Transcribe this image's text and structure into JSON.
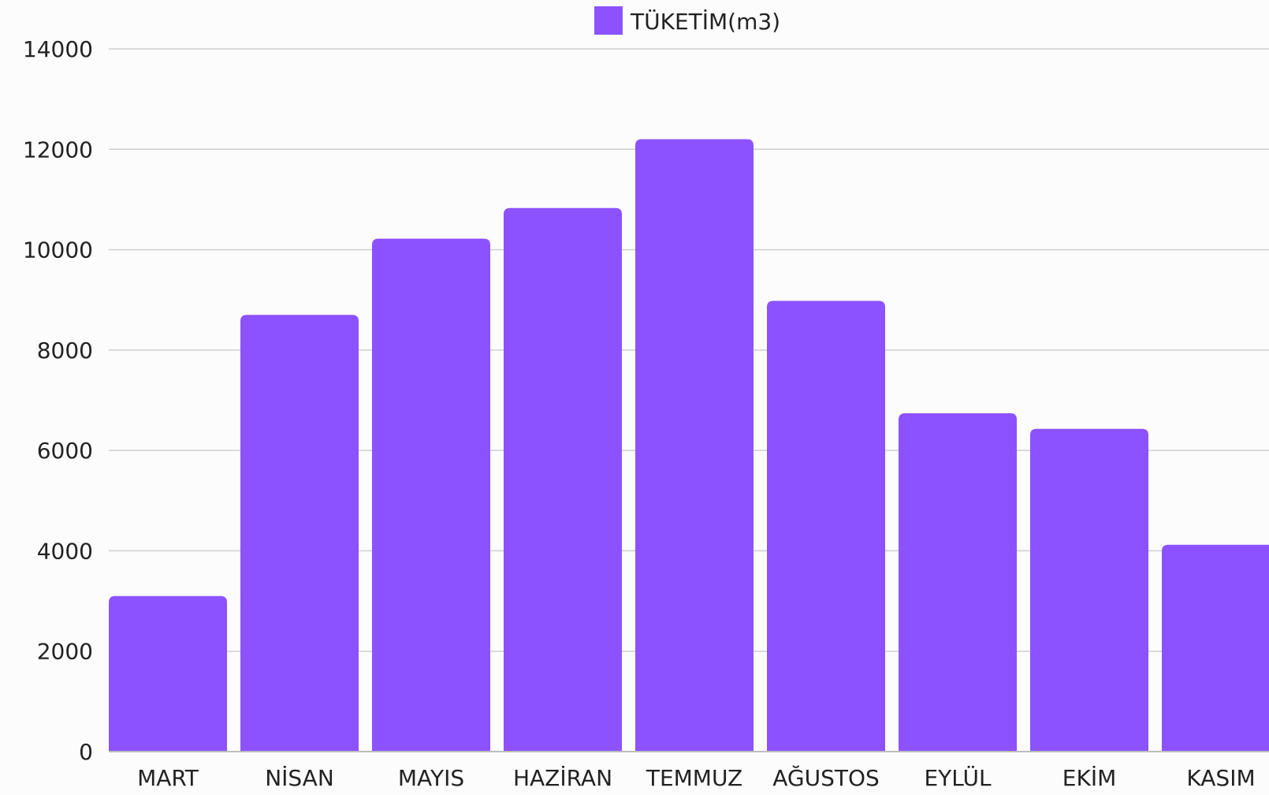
{
  "chart_data": {
    "type": "bar",
    "categories": [
      "MART",
      "NİSAN",
      "MAYIS",
      "HAZİRAN",
      "TEMMUZ",
      "AĞUSTOS",
      "EYLÜL",
      "EKİM",
      "KASIM"
    ],
    "series": [
      {
        "name": "TÜKETİM(m3)",
        "values": [
          3100,
          8700,
          10220,
          10830,
          12200,
          8980,
          6740,
          6430,
          4120
        ],
        "color": "#8c52ff"
      }
    ],
    "yticks": [
      "0",
      "2000",
      "4000",
      "6000",
      "8000",
      "10000",
      "12000",
      "14000"
    ],
    "ylim": [
      0,
      14000
    ],
    "grid": true,
    "legend_position": "top-center"
  }
}
